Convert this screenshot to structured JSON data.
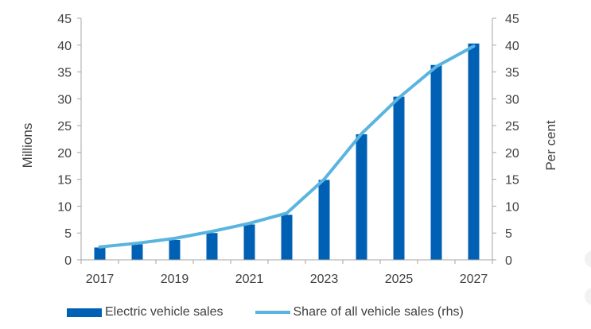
{
  "chart_data": {
    "type": "bar",
    "x_tick_labels": [
      "2017",
      "2019",
      "2021",
      "2023",
      "2025",
      "2027"
    ],
    "categories": [
      "2017",
      "2018",
      "2019",
      "2020",
      "2021",
      "2022",
      "2023",
      "2024",
      "2025",
      "2026",
      "2027"
    ],
    "ylabel": "Millions",
    "ylabel_right": "Per cent",
    "ylim": [
      0,
      45
    ],
    "ylim_right": [
      0,
      45
    ],
    "yticks": [
      "0",
      "5",
      "10",
      "15",
      "20",
      "25",
      "30",
      "35",
      "40",
      "45"
    ],
    "yticks_right": [
      "0",
      "5",
      "10",
      "15",
      "20",
      "25",
      "30",
      "35",
      "40",
      "45"
    ],
    "grid": false,
    "legend_position": "bottom",
    "series": [
      {
        "name": "Electric vehicle sales",
        "type": "bar",
        "axis": "left",
        "color": "#0060b4",
        "values": [
          2.3,
          2.9,
          3.7,
          5.0,
          6.6,
          8.4,
          14.9,
          23.4,
          30.4,
          36.3,
          40.3
        ]
      },
      {
        "name": "Share of all vehicle sales (rhs)",
        "type": "line",
        "axis": "right",
        "color": "#5ab4e0",
        "values": [
          2.4,
          3.1,
          4.0,
          5.3,
          6.8,
          8.7,
          15.0,
          23.5,
          30.2,
          36.0,
          39.8
        ]
      }
    ]
  }
}
